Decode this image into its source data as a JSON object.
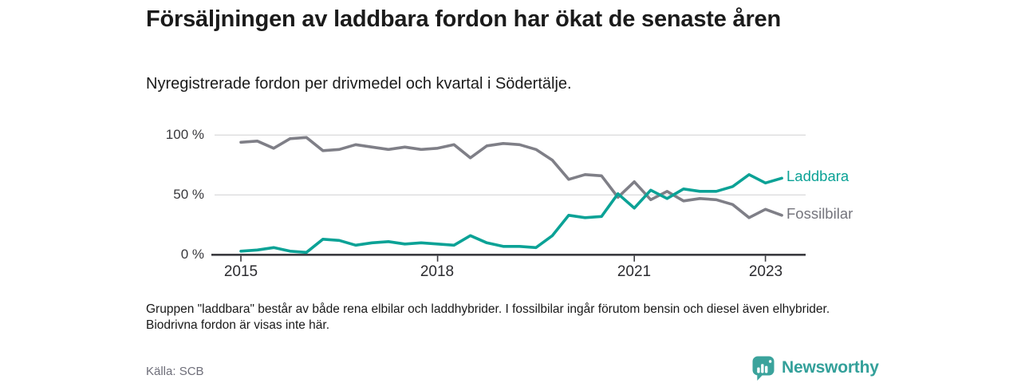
{
  "header": {
    "title": "Försäljningen av laddbara fordon har ökat de senaste åren",
    "subtitle": "Nyregistrerade fordon per drivmedel och kvartal i Södertälje."
  },
  "chart_data": {
    "type": "line",
    "title": "Försäljningen av laddbara fordon har ökat de senaste åren",
    "subtitle": "Nyregistrerade fordon per drivmedel och kvartal i Södertälje.",
    "unit": "percent of newly registered vehicles per quarter",
    "x_axis": {
      "start_quarter": "2015 Q1",
      "end_quarter": "2023 Q2",
      "tick_labels": [
        "2015",
        "2018",
        "2021",
        "2023"
      ],
      "tick_quarter_indices": [
        0,
        12,
        24,
        32
      ]
    },
    "y_axis": {
      "tick_labels": [
        "100 %",
        "50 %",
        "0 %"
      ],
      "ticks": [
        100,
        50,
        0
      ],
      "range": [
        0,
        100
      ],
      "grid": true
    },
    "legend_position": "right-end-of-line",
    "series": [
      {
        "name": "Fossilbilar",
        "color": "#7f7f87",
        "values": [
          94,
          95,
          89,
          97,
          98,
          87,
          88,
          92,
          90,
          88,
          90,
          88,
          89,
          92,
          81,
          91,
          93,
          92,
          88,
          79,
          63,
          67,
          66,
          48,
          61,
          46,
          53,
          45,
          47,
          46,
          42,
          31,
          38,
          33
        ]
      },
      {
        "name": "Laddbara",
        "color": "#0ba296",
        "values": [
          3,
          4,
          6,
          3,
          2,
          13,
          12,
          8,
          10,
          11,
          9,
          10,
          9,
          8,
          16,
          10,
          7,
          7,
          6,
          16,
          33,
          31,
          32,
          51,
          39,
          54,
          47,
          55,
          53,
          53,
          57,
          67,
          60,
          64
        ]
      }
    ]
  },
  "footnote": "Gruppen \"laddbara\" består av både rena elbilar och laddhybrider. I fossilbilar ingår förutom bensin och diesel även elhybrider. Biodrivna fordon är visas inte här.",
  "source": "Källa: SCB",
  "branding": {
    "name": "Newsworthy",
    "accent_color": "#3ba39c"
  }
}
